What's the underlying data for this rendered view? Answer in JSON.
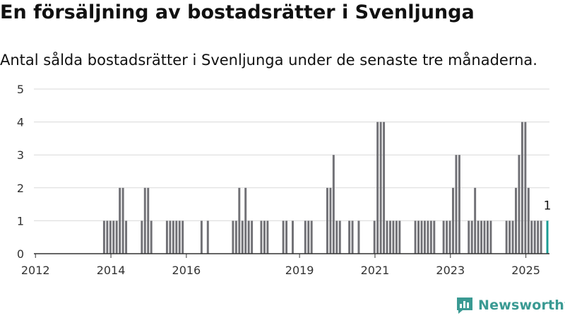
{
  "title": "En försäljning av bostadsrätter i Svenljunga",
  "subtitle": "Antal sålda bostadsrätter i Svenljunga under de senaste tre månaderna.",
  "brand": "Newsworthy",
  "colors": {
    "bar": "#717176",
    "highlight": "#1a9c94",
    "grid": "#d9d9d9",
    "brand": "#3a9a93"
  },
  "chart_data": {
    "type": "bar",
    "x_unit": "month",
    "x_range": [
      "2012-01",
      "2025-08"
    ],
    "ylim": [
      0,
      5
    ],
    "yticks": [
      0,
      1,
      2,
      3,
      4,
      5
    ],
    "xticks": [
      "2012",
      "2014",
      "2016",
      "2019",
      "2021",
      "2023",
      "2025"
    ],
    "grid": true,
    "values": [
      [
        "2013-11",
        1
      ],
      [
        "2013-12",
        1
      ],
      [
        "2014-01",
        1
      ],
      [
        "2014-02",
        1
      ],
      [
        "2014-03",
        1
      ],
      [
        "2014-04",
        2
      ],
      [
        "2014-05",
        2
      ],
      [
        "2014-06",
        1
      ],
      [
        "2014-11",
        1
      ],
      [
        "2014-12",
        2
      ],
      [
        "2015-01",
        2
      ],
      [
        "2015-02",
        1
      ],
      [
        "2015-07",
        1
      ],
      [
        "2015-08",
        1
      ],
      [
        "2015-09",
        1
      ],
      [
        "2015-10",
        1
      ],
      [
        "2015-11",
        1
      ],
      [
        "2015-12",
        1
      ],
      [
        "2016-06",
        1
      ],
      [
        "2016-08",
        1
      ],
      [
        "2017-04",
        1
      ],
      [
        "2017-05",
        1
      ],
      [
        "2017-06",
        2
      ],
      [
        "2017-07",
        1
      ],
      [
        "2017-08",
        2
      ],
      [
        "2017-09",
        1
      ],
      [
        "2017-10",
        1
      ],
      [
        "2018-01",
        1
      ],
      [
        "2018-02",
        1
      ],
      [
        "2018-03",
        1
      ],
      [
        "2018-08",
        1
      ],
      [
        "2018-09",
        1
      ],
      [
        "2018-11",
        1
      ],
      [
        "2019-03",
        1
      ],
      [
        "2019-04",
        1
      ],
      [
        "2019-05",
        1
      ],
      [
        "2019-10",
        2
      ],
      [
        "2019-11",
        2
      ],
      [
        "2019-12",
        3
      ],
      [
        "2020-01",
        1
      ],
      [
        "2020-02",
        1
      ],
      [
        "2020-05",
        1
      ],
      [
        "2020-06",
        1
      ],
      [
        "2020-08",
        1
      ],
      [
        "2021-01",
        1
      ],
      [
        "2021-02",
        4
      ],
      [
        "2021-03",
        4
      ],
      [
        "2021-04",
        4
      ],
      [
        "2021-05",
        1
      ],
      [
        "2021-06",
        1
      ],
      [
        "2021-07",
        1
      ],
      [
        "2021-08",
        1
      ],
      [
        "2021-09",
        1
      ],
      [
        "2022-02",
        1
      ],
      [
        "2022-03",
        1
      ],
      [
        "2022-04",
        1
      ],
      [
        "2022-05",
        1
      ],
      [
        "2022-06",
        1
      ],
      [
        "2022-07",
        1
      ],
      [
        "2022-08",
        1
      ],
      [
        "2022-11",
        1
      ],
      [
        "2022-12",
        1
      ],
      [
        "2023-01",
        1
      ],
      [
        "2023-02",
        2
      ],
      [
        "2023-03",
        3
      ],
      [
        "2023-04",
        3
      ],
      [
        "2023-07",
        1
      ],
      [
        "2023-08",
        1
      ],
      [
        "2023-09",
        2
      ],
      [
        "2023-10",
        1
      ],
      [
        "2023-11",
        1
      ],
      [
        "2023-12",
        1
      ],
      [
        "2024-01",
        1
      ],
      [
        "2024-02",
        1
      ],
      [
        "2024-07",
        1
      ],
      [
        "2024-08",
        1
      ],
      [
        "2024-09",
        1
      ],
      [
        "2024-10",
        2
      ],
      [
        "2024-11",
        3
      ],
      [
        "2024-12",
        4
      ],
      [
        "2025-01",
        4
      ],
      [
        "2025-02",
        2
      ],
      [
        "2025-03",
        1
      ],
      [
        "2025-04",
        1
      ],
      [
        "2025-05",
        1
      ],
      [
        "2025-06",
        1
      ],
      [
        "2025-08",
        1
      ]
    ],
    "highlight": {
      "x": "2025-08",
      "value": 1,
      "label": "1"
    }
  }
}
